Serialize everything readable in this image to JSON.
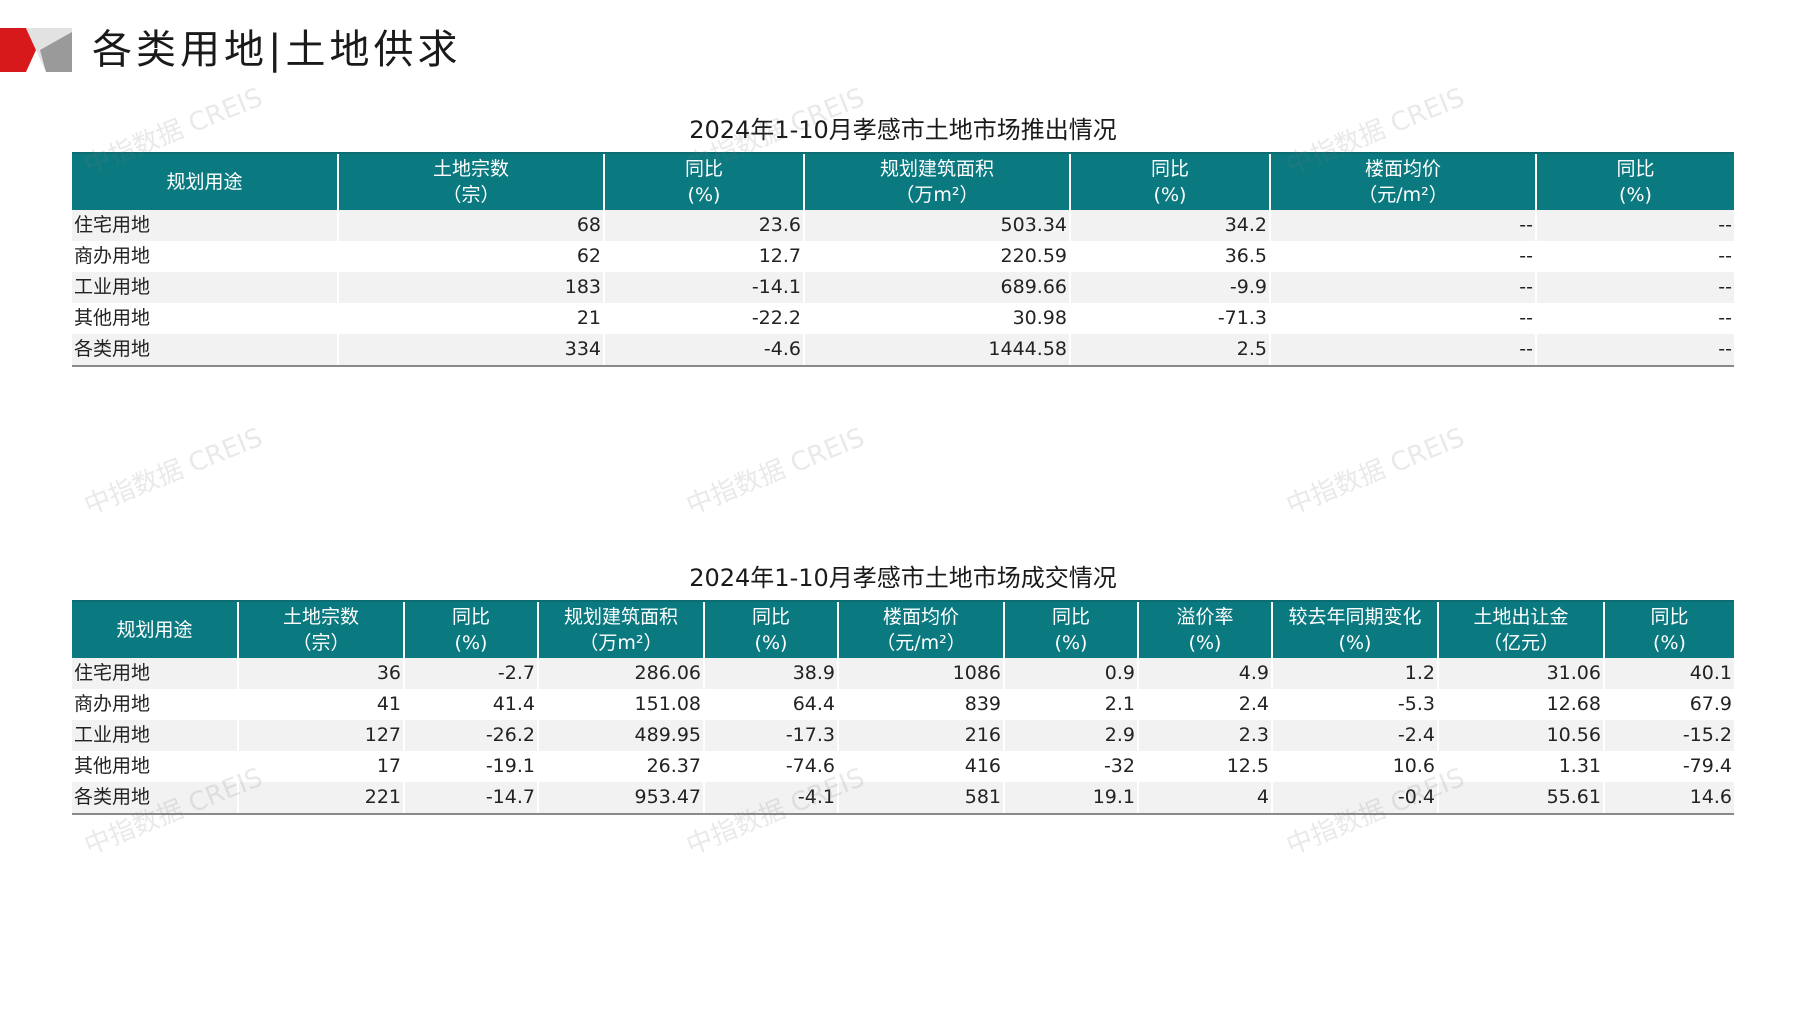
{
  "page": {
    "title": "各类用地|土地供求",
    "watermark": "中指数据 CREIS"
  },
  "supply_table": {
    "caption": "2024年1-10月孝感市土地市场推出情况",
    "headers": [
      [
        "规划用途"
      ],
      [
        "土地宗数",
        "（宗）"
      ],
      [
        "同比",
        "(%)"
      ],
      [
        "规划建筑面积",
        "（万m²）"
      ],
      [
        "同比",
        "(%)"
      ],
      [
        "楼面均价",
        "（元/m²）"
      ],
      [
        "同比",
        "(%)"
      ]
    ],
    "rows": [
      [
        "住宅用地",
        "68",
        "23.6",
        "503.34",
        "34.2",
        "--",
        "--"
      ],
      [
        "商办用地",
        "62",
        "12.7",
        "220.59",
        "36.5",
        "--",
        "--"
      ],
      [
        "工业用地",
        "183",
        "-14.1",
        "689.66",
        "-9.9",
        "--",
        "--"
      ],
      [
        "其他用地",
        "21",
        "-22.2",
        "30.98",
        "-71.3",
        "--",
        "--"
      ],
      [
        "各类用地",
        "334",
        "-4.6",
        "1444.58",
        "2.5",
        "--",
        "--"
      ]
    ]
  },
  "deal_table": {
    "caption": "2024年1-10月孝感市土地市场成交情况",
    "headers": [
      [
        "规划用途"
      ],
      [
        "土地宗数",
        "（宗）"
      ],
      [
        "同比",
        "(%)"
      ],
      [
        "规划建筑面积",
        "（万m²）"
      ],
      [
        "同比",
        "(%)"
      ],
      [
        "楼面均价",
        "（元/m²）"
      ],
      [
        "同比",
        "(%)"
      ],
      [
        "溢价率",
        "(%)"
      ],
      [
        "较去年同期变化",
        "(%)"
      ],
      [
        "土地出让金",
        "（亿元）"
      ],
      [
        "同比",
        "(%)"
      ]
    ],
    "rows": [
      [
        "住宅用地",
        "36",
        "-2.7",
        "286.06",
        "38.9",
        "1086",
        "0.9",
        "4.9",
        "1.2",
        "31.06",
        "40.1"
      ],
      [
        "商办用地",
        "41",
        "41.4",
        "151.08",
        "64.4",
        "839",
        "2.1",
        "2.4",
        "-5.3",
        "12.68",
        "67.9"
      ],
      [
        "工业用地",
        "127",
        "-26.2",
        "489.95",
        "-17.3",
        "216",
        "2.9",
        "2.3",
        "-2.4",
        "10.56",
        "-15.2"
      ],
      [
        "其他用地",
        "17",
        "-19.1",
        "26.37",
        "-74.6",
        "416",
        "-32",
        "12.5",
        "10.6",
        "1.31",
        "-79.4"
      ],
      [
        "各类用地",
        "221",
        "-14.7",
        "953.47",
        "-4.1",
        "581",
        "19.1",
        "4",
        "-0.4",
        "55.61",
        "14.6"
      ]
    ]
  },
  "theme": {
    "header_bg": "#0b7a80",
    "accent_red": "#d7191c",
    "accent_gray": "#b5b5b5"
  }
}
